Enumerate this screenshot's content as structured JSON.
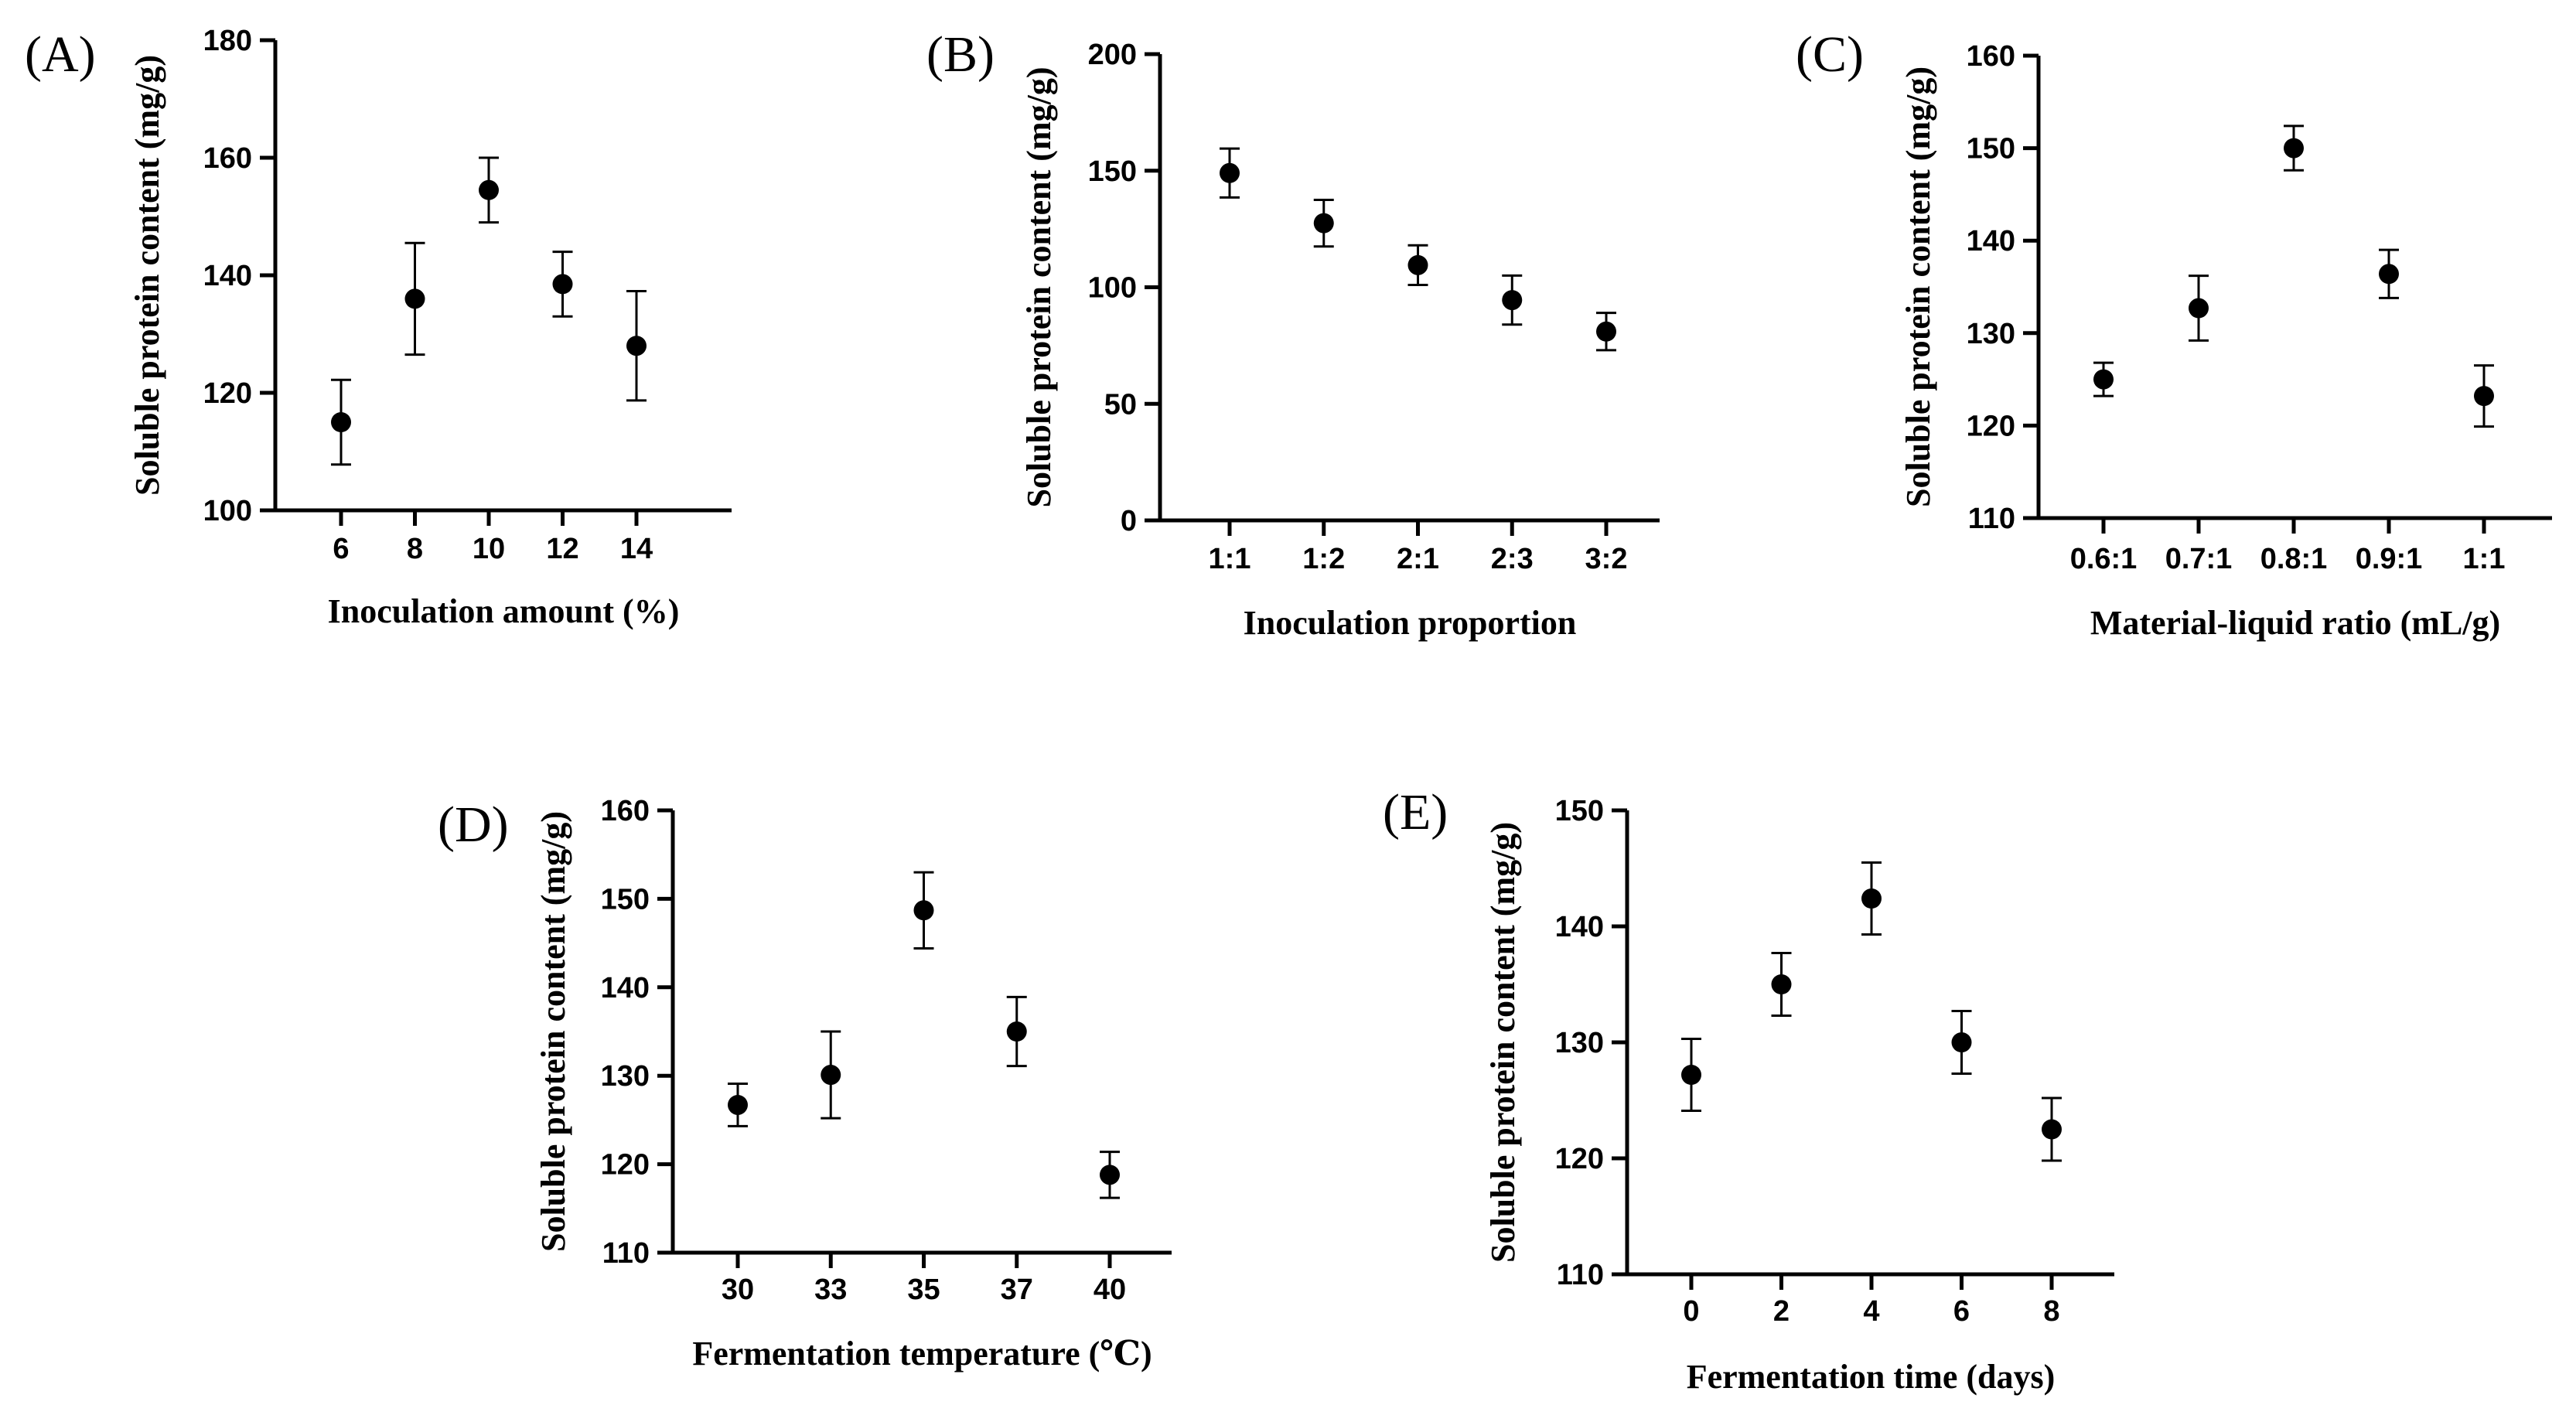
{
  "chart_data": [
    {
      "type": "scatter",
      "panel": "(A)",
      "xlabel": "Inoculation amount (%)",
      "ylabel": "Soluble protein content (mg/g)",
      "categories": [
        "6",
        "8",
        "10",
        "12",
        "14"
      ],
      "values": [
        115,
        136,
        154.5,
        138.5,
        128
      ],
      "errors": [
        7.2,
        9.5,
        5.5,
        5.5,
        9.3
      ],
      "ylim": [
        100,
        180
      ],
      "yticks": [
        100,
        120,
        140,
        160,
        180
      ]
    },
    {
      "type": "scatter",
      "panel": "(B)",
      "xlabel": "Inoculation proportion",
      "ylabel": "Soluble protein content (mg/g)",
      "categories": [
        "1:1",
        "1:2",
        "2:1",
        "2:3",
        "3:2"
      ],
      "values": [
        149,
        127.5,
        109.5,
        94.5,
        81
      ],
      "errors": [
        10.5,
        10,
        8.5,
        10.5,
        8
      ],
      "ylim": [
        0,
        200
      ],
      "yticks": [
        0,
        50,
        100,
        150,
        200
      ]
    },
    {
      "type": "scatter",
      "panel": "(C)",
      "xlabel": "Material-liquid ratio (mL/g)",
      "ylabel": "Soluble protein content (mg/g)",
      "categories": [
        "0.6:1",
        "0.7:1",
        "0.8:1",
        "0.9:1",
        "1:1"
      ],
      "values": [
        125,
        132.7,
        150,
        136.4,
        123.2
      ],
      "errors": [
        1.8,
        3.5,
        2.4,
        2.6,
        3.3
      ],
      "ylim": [
        110,
        160
      ],
      "yticks": [
        110,
        120,
        130,
        140,
        150,
        160
      ]
    },
    {
      "type": "scatter",
      "panel": "(D)",
      "xlabel": "Fermentation temperature (℃)",
      "ylabel": "Soluble protein content (mg/g)",
      "categories": [
        "30",
        "33",
        "35",
        "37",
        "40"
      ],
      "values": [
        126.7,
        130.1,
        148.7,
        135,
        118.8
      ],
      "errors": [
        2.4,
        4.9,
        4.3,
        3.9,
        2.6
      ],
      "ylim": [
        110,
        160
      ],
      "yticks": [
        110,
        120,
        130,
        140,
        150,
        160
      ]
    },
    {
      "type": "scatter",
      "panel": "(E)",
      "xlabel": "Fermentation time (days)",
      "ylabel": "Soluble protein content (mg/g)",
      "categories": [
        "0",
        "2",
        "4",
        "6",
        "8"
      ],
      "values": [
        127.2,
        135,
        142.4,
        130,
        122.5
      ],
      "errors": [
        3.1,
        2.7,
        3.1,
        2.7,
        2.7
      ],
      "ylim": [
        110,
        150
      ],
      "yticks": [
        110,
        120,
        130,
        140,
        150
      ]
    }
  ]
}
